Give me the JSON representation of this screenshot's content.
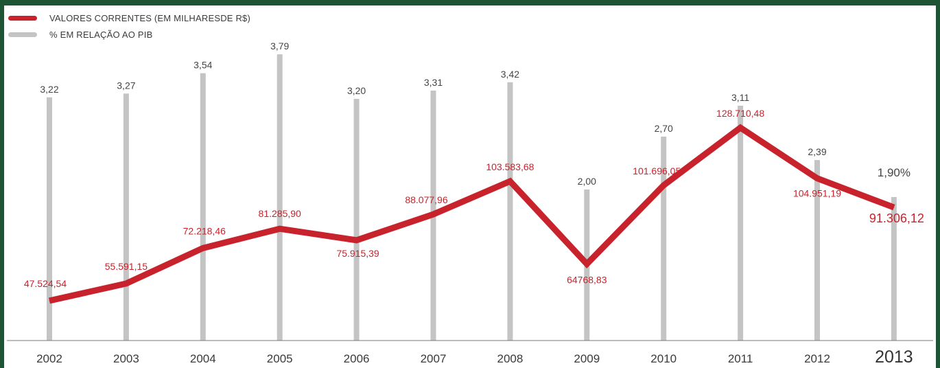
{
  "legend": {
    "series1_label": "VALORES CORRENTES (EM MILHARESDE R$)",
    "series2_label": "% EM RELAÇÃO AO PIB"
  },
  "colors": {
    "values_line": "#c8232c",
    "pct_bars": "#c4c4c4",
    "border": "#1d5434"
  },
  "chart_data": {
    "type": "line",
    "categories": [
      "2002",
      "2003",
      "2004",
      "2005",
      "2006",
      "2007",
      "2008",
      "2009",
      "2010",
      "2011",
      "2012",
      "2013"
    ],
    "series": [
      {
        "name": "VALORES CORRENTES (EM MILHARESDE R$)",
        "type": "line",
        "values": [
          47524.54,
          55591.15,
          72218.46,
          81285.9,
          75915.39,
          88077.96,
          103583.68,
          64768.83,
          101696.05,
          128710.48,
          104951.19,
          91306.12
        ],
        "labels": [
          "47.524,54",
          "55.591,15",
          "72.218,46",
          "81.285,90",
          "75.915,39",
          "88.077,96",
          "103.583,68",
          "64768,83",
          "101.696,05",
          "128.710,48",
          "104.951,19",
          "91.306,12"
        ]
      },
      {
        "name": "% EM RELAÇÃO AO PIB",
        "type": "bar",
        "values": [
          3.22,
          3.27,
          3.54,
          3.79,
          3.2,
          3.31,
          3.42,
          2.0,
          2.7,
          3.11,
          2.39,
          1.9
        ],
        "labels": [
          "3,22",
          "3,27",
          "3,54",
          "3,79",
          "3,20",
          "3,31",
          "3,42",
          "2,00",
          "2,70",
          "3,11",
          "2,39",
          "1,90%"
        ]
      }
    ],
    "highlight_category": "2013",
    "legend_position": "top-left",
    "grid": false
  }
}
